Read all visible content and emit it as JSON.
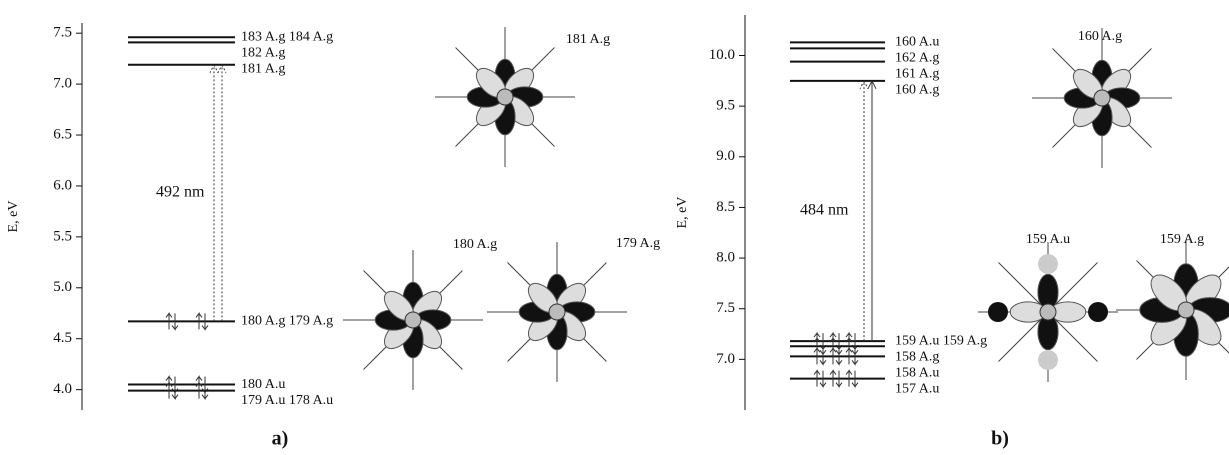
{
  "chart_data": [
    {
      "type": "energy-level",
      "ylabel": "E, eV",
      "panel_label": "a)",
      "ylim": [
        3.8,
        7.6
      ],
      "yticks": [
        {
          "value": 4.0,
          "label": "4.0"
        },
        4.5,
        {
          "value": 5.0,
          "label": "5.0"
        },
        5.5,
        {
          "value": 6.0,
          "label": "6.0"
        },
        6.5,
        {
          "value": 7.0,
          "label": "7.0"
        },
        7.5
      ],
      "levels": [
        {
          "energy": 7.46,
          "label": "183 A.g  184 A.g",
          "occupied": false
        },
        {
          "energy": 7.41,
          "label": "182 A.g",
          "occupied": false
        },
        {
          "energy": 7.19,
          "label": "181 A.g",
          "occupied": false
        },
        {
          "energy": 4.67,
          "label": "180 A.g  179 A.g",
          "occupied": true
        },
        {
          "energy": 4.05,
          "label": "180 A.u",
          "occupied": true
        },
        {
          "energy": 3.99,
          "label": "179 A.u  178 A.u",
          "occupied": true
        }
      ],
      "transitions": [
        {
          "from": 4.67,
          "to": 7.19,
          "label": "492 nm"
        }
      ],
      "orbitals": [
        "181 A.g",
        "180 A.g",
        "179 A.g"
      ]
    },
    {
      "type": "energy-level",
      "ylabel": "E, eV",
      "panel_label": "b)",
      "ylim": [
        6.5,
        10.4
      ],
      "yticks": [
        {
          "value": 7.0,
          "label": "7.0"
        },
        7.5,
        {
          "value": 8.0,
          "label": "8.0"
        },
        8.5,
        {
          "value": 9.0,
          "label": "9.0"
        },
        9.5,
        {
          "value": 10.0,
          "label": "10.0"
        }
      ],
      "levels": [
        {
          "energy": 10.13,
          "label": "160 A.u",
          "occupied": false
        },
        {
          "energy": 10.07,
          "label": "162 A.g",
          "occupied": false
        },
        {
          "energy": 9.94,
          "label": "161 A.g",
          "occupied": false
        },
        {
          "energy": 9.75,
          "label": "160 A.g",
          "occupied": false
        },
        {
          "energy": 7.18,
          "label": "159 A.u 159 A.g",
          "occupied": true
        },
        {
          "energy": 7.13,
          "label": "158 A.g",
          "occupied": true
        },
        {
          "energy": 7.03,
          "label": "158 A.u",
          "occupied": true
        },
        {
          "energy": 6.81,
          "label": "157 A.u",
          "occupied": true
        }
      ],
      "transitions": [
        {
          "from": 7.18,
          "to": 9.75,
          "label": "484 nm"
        }
      ],
      "orbitals": [
        "160 A.g",
        "159 A.u",
        "159 A.g"
      ]
    }
  ]
}
